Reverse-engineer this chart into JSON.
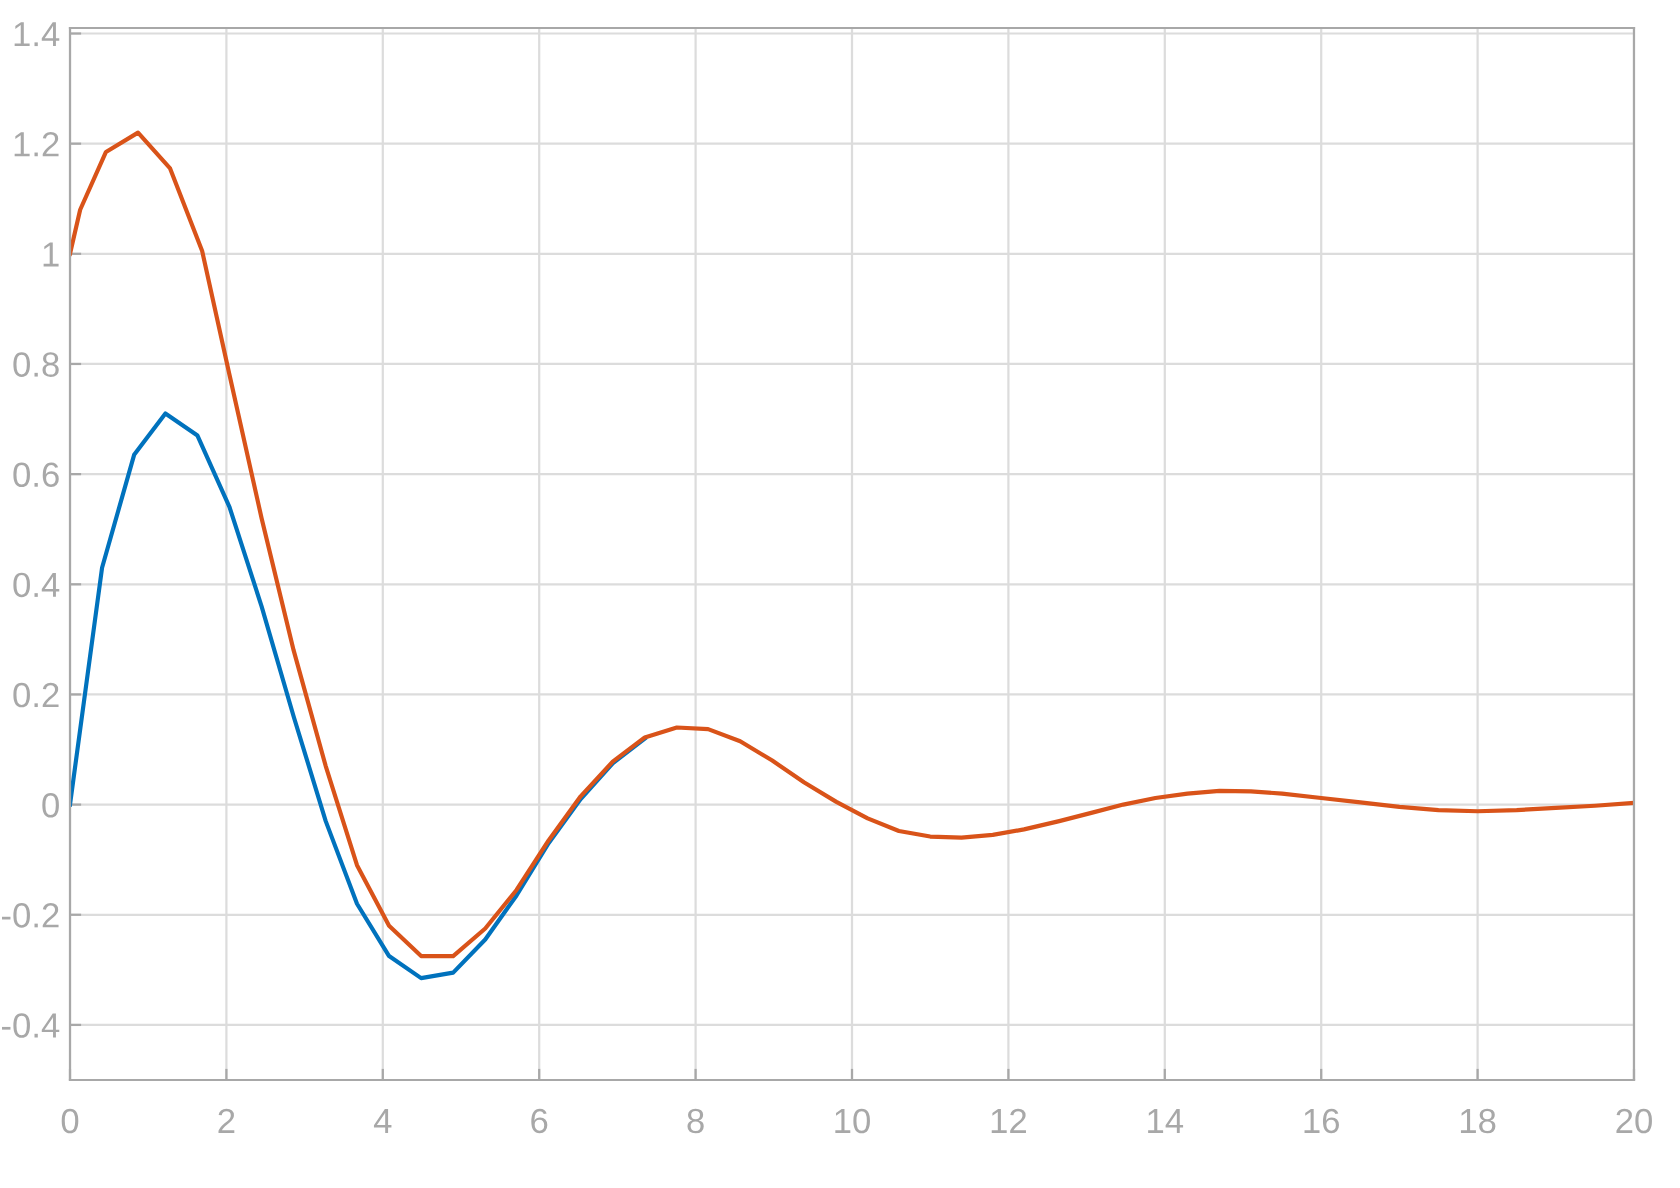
{
  "chart_data": {
    "type": "line",
    "xlim": [
      0,
      20
    ],
    "ylim": [
      -0.5,
      1.41
    ],
    "xticks": [
      0,
      2,
      4,
      6,
      8,
      10,
      12,
      14,
      16,
      18,
      20
    ],
    "yticks": [
      -0.4,
      -0.2,
      0,
      0.2,
      0.4,
      0.6,
      0.8,
      1,
      1.2,
      1.4
    ],
    "grid": true,
    "marker": "none",
    "line_style": "solid",
    "series": [
      {
        "color": "#0072bd",
        "x": [
          0,
          0.41,
          0.82,
          1.22,
          1.63,
          2.04,
          2.45,
          2.86,
          3.27,
          3.67,
          4.08,
          4.49,
          4.9,
          5.31,
          5.71,
          6.12,
          6.53,
          6.94,
          7.35
        ],
        "values": [
          0,
          0.43,
          0.635,
          0.71,
          0.67,
          0.54,
          0.36,
          0.16,
          -0.03,
          -0.18,
          -0.275,
          -0.315,
          -0.305,
          -0.245,
          -0.165,
          -0.07,
          0.01,
          0.075,
          0.12
        ]
      },
      {
        "color": "#d95319",
        "x": [
          0,
          0.13,
          0.46,
          0.87,
          1.28,
          1.69,
          2.04,
          2.45,
          2.86,
          3.27,
          3.67,
          4.08,
          4.49,
          4.9,
          5.31,
          5.71,
          6.12,
          6.53,
          6.94,
          7.35,
          7.76,
          8.16,
          8.57,
          8.98,
          9.39,
          9.8,
          10.2,
          10.6,
          11.0,
          11.4,
          11.8,
          12.2,
          12.65,
          13.06,
          13.47,
          13.88,
          14.29,
          14.7,
          15.1,
          15.5,
          16.0,
          16.5,
          17.0,
          17.5,
          18.0,
          18.5,
          19.0,
          19.5,
          20.0
        ],
        "values": [
          1,
          1.08,
          1.185,
          1.22,
          1.155,
          1.005,
          0.78,
          0.52,
          0.28,
          0.07,
          -0.11,
          -0.22,
          -0.275,
          -0.275,
          -0.225,
          -0.155,
          -0.065,
          0.015,
          0.078,
          0.122,
          0.14,
          0.137,
          0.115,
          0.08,
          0.04,
          0.005,
          -0.025,
          -0.048,
          -0.058,
          -0.06,
          -0.055,
          -0.045,
          -0.03,
          -0.015,
          0.0,
          0.012,
          0.02,
          0.025,
          0.024,
          0.02,
          0.012,
          0.004,
          -0.004,
          -0.01,
          -0.012,
          -0.01,
          -0.006,
          -0.002,
          0.003
        ]
      }
    ]
  }
}
